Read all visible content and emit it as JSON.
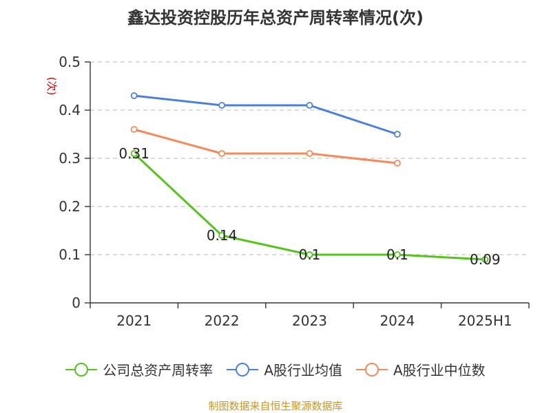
{
  "title": "鑫达投资控股历年总资产周转率情况(次)",
  "source": "制图数据来自恒生聚源数据库",
  "chart_data": {
    "type": "line",
    "title": "鑫达投资控股历年总资产周转率情况(次)",
    "ylabel": "(次)",
    "categories": [
      "2021",
      "2022",
      "2023",
      "2024",
      "2025H1"
    ],
    "y_ticks": [
      "0",
      "0.1",
      "0.2",
      "0.3",
      "0.4",
      "0.5"
    ],
    "ylim": [
      0,
      0.5
    ],
    "grid": true,
    "legend_position": "bottom",
    "series": [
      {
        "name": "公司总资产周转率",
        "color": "#52c41a",
        "values": [
          0.31,
          0.14,
          0.1,
          0.1,
          0.09
        ],
        "labels": [
          "0.31",
          "0.14",
          "0.1",
          "0.1",
          "0.09"
        ]
      },
      {
        "name": "A股行业均值",
        "color": "#4a7fdb",
        "values": [
          0.43,
          0.41,
          0.41,
          0.35,
          null
        ]
      },
      {
        "name": "A股行业中位数",
        "color": "#f5895a",
        "values": [
          0.36,
          0.31,
          0.31,
          0.29,
          null
        ]
      }
    ]
  }
}
